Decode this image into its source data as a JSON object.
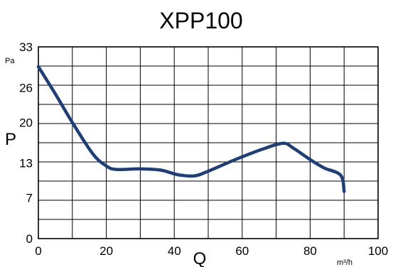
{
  "chart_data": {
    "type": "line",
    "title": "XPP100",
    "xlabel": "Q",
    "ylabel": "P",
    "x_unit": "m³/h",
    "y_unit": "Pa",
    "xlim": [
      0,
      100
    ],
    "ylim": [
      0,
      33
    ],
    "x_ticks": [
      "0",
      "20",
      "40",
      "60",
      "80",
      "100"
    ],
    "y_ticks": [
      "0",
      "7",
      "13",
      "20",
      "26",
      "33"
    ],
    "grid": true,
    "series": [
      {
        "color": "#1c3f7a",
        "x": [
          0,
          5,
          10,
          16,
          20,
          23,
          30,
          36,
          41,
          46,
          50,
          58,
          66,
          72,
          75,
          80,
          84,
          89,
          90
        ],
        "y": [
          29.6,
          24.9,
          20.0,
          14.6,
          12.5,
          11.9,
          12.0,
          11.8,
          11.0,
          10.8,
          11.6,
          13.6,
          15.4,
          16.4,
          15.6,
          13.6,
          12.2,
          10.9,
          8.1
        ]
      }
    ]
  }
}
